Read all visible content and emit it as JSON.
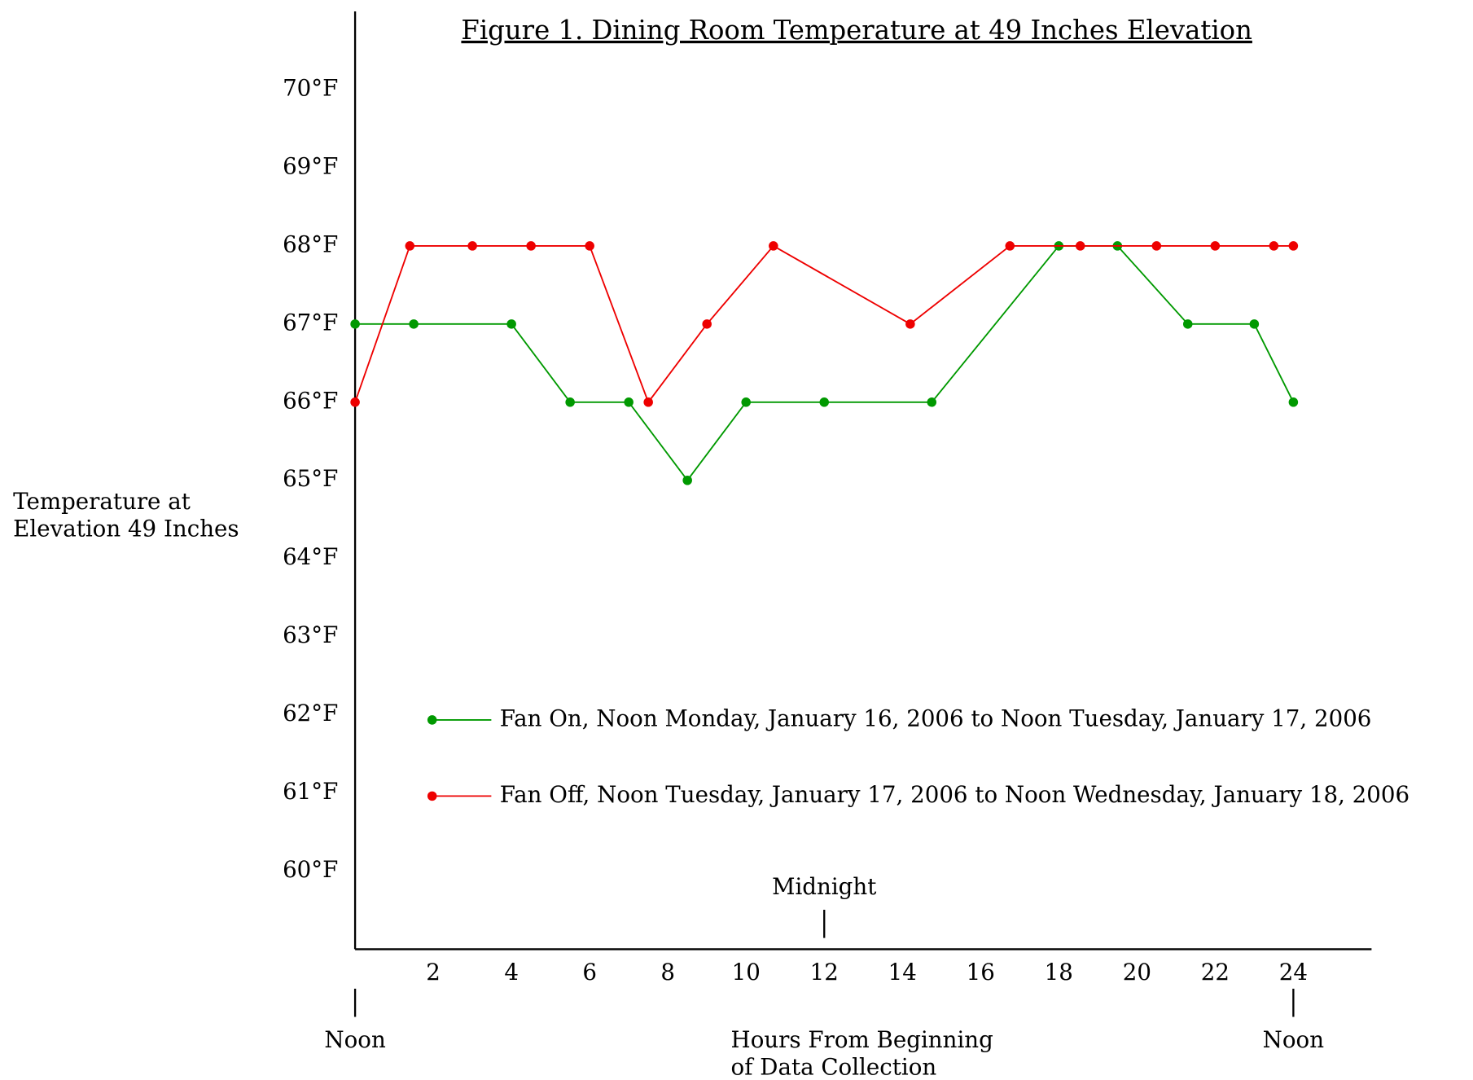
{
  "chart_data": {
    "type": "line",
    "title": "Figure 1.  Dining Room Temperature at 49 Inches Elevation",
    "y_label": [
      "Temperature at",
      "Elevation 49 Inches"
    ],
    "x_label": [
      "Hours From Beginning",
      "of Data Collection"
    ],
    "annotations": [
      {
        "text": "Noon",
        "x": 0
      },
      {
        "text": "Midnight",
        "x": 12
      },
      {
        "text": "Noon",
        "x": 24
      }
    ],
    "xlim": [
      0,
      26
    ],
    "xticks": [
      2,
      4,
      6,
      8,
      10,
      12,
      14,
      16,
      18,
      20,
      22,
      24
    ],
    "ylim": [
      59,
      71
    ],
    "yticks": [
      {
        "value": 60,
        "label": "60°F"
      },
      {
        "value": 61,
        "label": "61°F"
      },
      {
        "value": 62,
        "label": "62°F"
      },
      {
        "value": 63,
        "label": "63°F"
      },
      {
        "value": 64,
        "label": "64°F"
      },
      {
        "value": 65,
        "label": "65°F"
      },
      {
        "value": 66,
        "label": "66°F"
      },
      {
        "value": 67,
        "label": "67°F"
      },
      {
        "value": 68,
        "label": "68°F"
      },
      {
        "value": 69,
        "label": "69°F"
      },
      {
        "value": 70,
        "label": "70°F"
      }
    ],
    "grid": false,
    "series": [
      {
        "name": "Fan On, Noon Monday, January 16, 2006 to Noon Tuesday, January 17, 2006",
        "color": "#009900",
        "x": [
          0,
          1.5,
          4,
          5.5,
          7,
          8.5,
          10,
          12,
          14.75,
          18,
          19.5,
          21.3,
          23,
          24
        ],
        "values": [
          67,
          67,
          67,
          66,
          66,
          65,
          66,
          66,
          66,
          68,
          68,
          67,
          67,
          66
        ]
      },
      {
        "name": "Fan Off, Noon Tuesday, January 17, 2006 to Noon Wednesday, January 18, 2006",
        "color": "#ee0000",
        "x": [
          0,
          1.4,
          3,
          4.5,
          6,
          7.5,
          9,
          10.7,
          14.2,
          16.75,
          18.55,
          20.5,
          22,
          23.5,
          24
        ],
        "values": [
          66,
          68,
          68,
          68,
          68,
          66,
          67,
          68,
          67,
          68,
          68,
          68,
          68,
          68,
          68
        ]
      }
    ]
  }
}
